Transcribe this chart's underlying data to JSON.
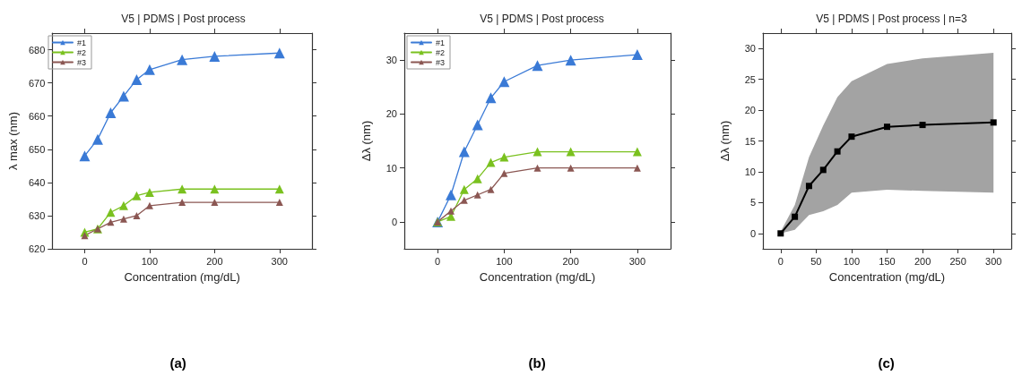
{
  "chart_data": [
    {
      "type": "line",
      "title": "V5 | PDMS | Post process",
      "xlabel": "Concentration (mg/dL)",
      "ylabel": "λ max (nm)",
      "annotations": [
        "(a)"
      ],
      "x": [
        0,
        20,
        40,
        60,
        80,
        100,
        150,
        200,
        300
      ],
      "series": [
        {
          "name": "#1",
          "color": "#3a7ad6",
          "values": [
            648,
            653,
            661,
            666,
            671,
            674,
            677,
            678,
            679
          ]
        },
        {
          "name": "#2",
          "color": "#7ac11f",
          "values": [
            625,
            626,
            631,
            633,
            636,
            637,
            638,
            638,
            638
          ]
        },
        {
          "name": "#3",
          "color": "#8b5753",
          "values": [
            624,
            626,
            628,
            629,
            630,
            633,
            634,
            634,
            634
          ]
        }
      ],
      "xlim": [
        -50,
        350
      ],
      "xticks": [
        0,
        100,
        200,
        300
      ],
      "ylim": [
        620,
        685
      ],
      "yticks": [
        620,
        630,
        640,
        650,
        660,
        670,
        680
      ],
      "grid": false,
      "legend": "top left",
      "marker": "triangle",
      "line_style": "solid"
    },
    {
      "type": "line",
      "title": "V5 | PDMS | Post process",
      "xlabel": "Concentration (mg/dL)",
      "ylabel": "Δλ (nm)",
      "annotations": [
        "(b)"
      ],
      "x": [
        0,
        20,
        40,
        60,
        80,
        100,
        150,
        200,
        300
      ],
      "series": [
        {
          "name": "#1",
          "color": "#3a7ad6",
          "values": [
            0,
            5,
            13,
            18,
            23,
            26,
            29,
            30,
            31
          ]
        },
        {
          "name": "#2",
          "color": "#7ac11f",
          "values": [
            0,
            1,
            6,
            8,
            11,
            12,
            13,
            13,
            13
          ]
        },
        {
          "name": "#3",
          "color": "#8b5753",
          "values": [
            0,
            2,
            4,
            5,
            6,
            9,
            10,
            10,
            10
          ]
        }
      ],
      "xlim": [
        -50,
        350
      ],
      "xticks": [
        0,
        100,
        200,
        300
      ],
      "ylim": [
        -5,
        35
      ],
      "yticks": [
        0,
        10,
        20,
        30
      ],
      "grid": false,
      "legend": "top left",
      "marker": "triangle",
      "line_style": "solid"
    },
    {
      "type": "line",
      "title": "V5 | PDMS | Post process | n=3",
      "xlabel": "Concentration (mg/dL)",
      "ylabel": "Δλ (nm)",
      "annotations": [
        "(c)"
      ],
      "x": [
        0,
        20,
        40,
        60,
        80,
        100,
        150,
        200,
        300
      ],
      "series": [
        {
          "color": "#000000",
          "values": [
            0,
            2.7,
            7.7,
            10.3,
            13.3,
            15.7,
            17.3,
            17.6,
            18.0
          ],
          "lower": [
            0,
            0.6,
            3.0,
            3.6,
            4.6,
            6.6,
            7.1,
            6.9,
            6.6
          ],
          "upper": [
            0.3,
            4.6,
            12.4,
            17.5,
            22.1,
            24.7,
            27.5,
            28.4,
            29.3
          ]
        }
      ],
      "xlim": [
        -25,
        325
      ],
      "xticks": [
        0,
        50,
        100,
        150,
        200,
        250,
        300
      ],
      "ylim": [
        -2.5,
        32.5
      ],
      "yticks": [
        0,
        5,
        10,
        15,
        20,
        25,
        30
      ],
      "grid": false,
      "legend": false,
      "marker": "square",
      "line_style": "solid"
    }
  ]
}
